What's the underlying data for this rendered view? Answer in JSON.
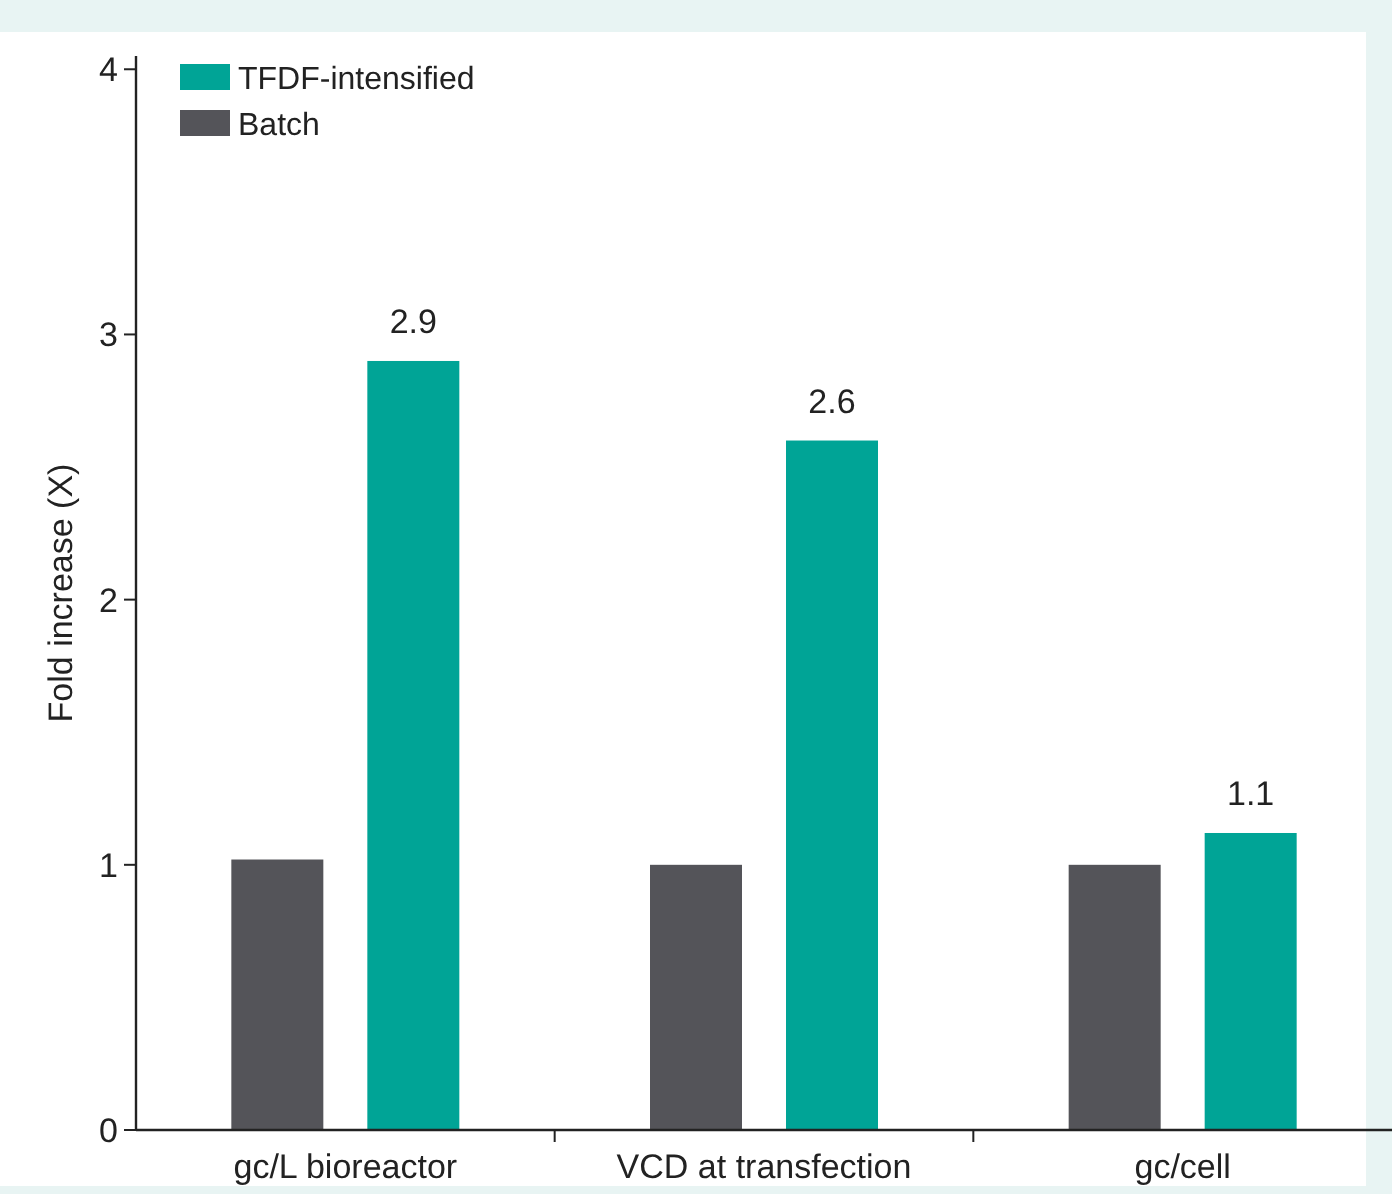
{
  "chart_data": {
    "type": "bar",
    "ylabel": "Fold increase (X)",
    "categories": [
      "gc/L bioreactor",
      "VCD at transfection",
      "gc/cell"
    ],
    "series": [
      {
        "name": "Batch",
        "color": "#545459",
        "values": [
          1.02,
          1.0,
          1.0
        ]
      },
      {
        "name": "TFDF-intensified",
        "color": "#00a496",
        "values": [
          2.9,
          2.6,
          1.12
        ],
        "value_labels": [
          "2.9",
          "2.6",
          "1.1"
        ]
      }
    ],
    "ylim": [
      0,
      4.05
    ],
    "yticks": [
      0,
      1,
      2,
      3,
      4
    ],
    "grid": false,
    "legend": "top left"
  }
}
